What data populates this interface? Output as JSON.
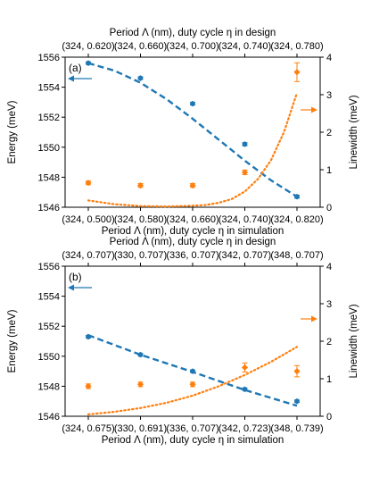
{
  "chart_data": [
    {
      "type": "scatter",
      "panel_label": "(a)",
      "xlabel_bottom": "Period Λ (nm), duty cycle η in simulation",
      "xlabel_top": "Period Λ (nm), duty cycle η in design",
      "ylabel_left": "Energy (meV)",
      "ylabel_right": "Linewidth (meV)",
      "categories_bottom": [
        "(324, 0.500)",
        "(324, 0.580)",
        "(324, 0.660)",
        "(324, 0.740)",
        "(324, 0.820)"
      ],
      "categories_top": [
        "(324, 0.620)",
        "(324, 0.660)",
        "(324, 0.700)",
        "(324, 0.740)",
        "(324, 0.780)"
      ],
      "y_left_lim": [
        1546,
        1556
      ],
      "y_left_ticks": [
        "1546",
        "1548",
        "1550",
        "1552",
        "1554",
        "1556"
      ],
      "y_right_lim": [
        0,
        4
      ],
      "y_right_ticks": [
        "0",
        "1",
        "2",
        "3",
        "4"
      ],
      "series": [
        {
          "axis": "left",
          "color": "#1f77b4",
          "marker": "hexagon",
          "values": [
            1555.6,
            1554.6,
            1552.9,
            1550.2,
            1546.7
          ],
          "errors": [
            0.08,
            0.08,
            0.08,
            0.1,
            0.1
          ]
        },
        {
          "axis": "right",
          "color": "#ff7f0e",
          "marker": "diamond",
          "values": [
            0.65,
            0.58,
            0.58,
            0.93,
            3.6
          ],
          "errors": [
            0.05,
            0.05,
            0.05,
            0.06,
            0.25
          ]
        }
      ],
      "fits": [
        {
          "axis": "left",
          "color": "#1f77b4",
          "style": "dashed",
          "x": [
            0,
            0.5,
            1,
            1.5,
            2,
            2.5,
            3,
            3.5,
            4
          ],
          "y": [
            1555.6,
            1555.1,
            1554.3,
            1553.2,
            1551.9,
            1550.5,
            1549.1,
            1547.8,
            1546.7
          ]
        },
        {
          "axis": "right",
          "color": "#ff7f0e",
          "style": "dotted",
          "x": [
            0,
            0.5,
            1,
            1.5,
            2,
            2.25,
            2.5,
            2.75,
            3,
            3.25,
            3.5,
            3.75,
            4
          ],
          "y": [
            0.18,
            0.08,
            0.03,
            0.02,
            0.04,
            0.06,
            0.12,
            0.22,
            0.42,
            0.75,
            1.25,
            2.0,
            3.05
          ]
        }
      ],
      "arrows": [
        {
          "direction": "left",
          "color": "#1f77b4"
        },
        {
          "direction": "right",
          "color": "#ff7f0e"
        }
      ]
    },
    {
      "type": "scatter",
      "panel_label": "(b)",
      "xlabel_bottom": "Period Λ (nm), duty cycle η in simulation",
      "xlabel_top": "Period Λ (nm), duty cycle η in design",
      "ylabel_left": "Energy (meV)",
      "ylabel_right": "Linewidth (meV)",
      "categories_bottom": [
        "(324, 0.675)",
        "(330, 0.691)",
        "(336, 0.707)",
        "(342, 0.723)",
        "(348, 0.739)"
      ],
      "categories_top": [
        "(324, 0.707)",
        "(330, 0.707)",
        "(336, 0.707)",
        "(342, 0.707)",
        "(348, 0.707)"
      ],
      "y_left_lim": [
        1546,
        1556
      ],
      "y_left_ticks": [
        "1546",
        "1548",
        "1550",
        "1552",
        "1554",
        "1556"
      ],
      "y_right_lim": [
        0,
        4
      ],
      "y_right_ticks": [
        "0",
        "1",
        "2",
        "3",
        "4"
      ],
      "series": [
        {
          "axis": "left",
          "color": "#1f77b4",
          "marker": "hexagon",
          "values": [
            1551.3,
            1550.1,
            1549.0,
            1547.8,
            1547.0
          ],
          "errors": [
            0.08,
            0.08,
            0.08,
            0.08,
            0.08
          ]
        },
        {
          "axis": "right",
          "color": "#ff7f0e",
          "marker": "diamond",
          "values": [
            0.8,
            0.85,
            0.85,
            1.3,
            1.2
          ],
          "errors": [
            0.06,
            0.06,
            0.06,
            0.12,
            0.15
          ]
        }
      ],
      "fits": [
        {
          "axis": "left",
          "color": "#1f77b4",
          "style": "dashed",
          "x": [
            0,
            1,
            2,
            3,
            4
          ],
          "y": [
            1551.4,
            1550.1,
            1548.95,
            1547.75,
            1546.7
          ]
        },
        {
          "axis": "right",
          "color": "#ff7f0e",
          "style": "dotted",
          "x": [
            0,
            0.5,
            1,
            1.5,
            2,
            2.5,
            3,
            3.5,
            4
          ],
          "y": [
            0.05,
            0.12,
            0.22,
            0.36,
            0.55,
            0.8,
            1.1,
            1.45,
            1.85
          ]
        }
      ],
      "arrows": [
        {
          "direction": "left",
          "color": "#1f77b4"
        },
        {
          "direction": "right",
          "color": "#ff7f0e"
        }
      ]
    }
  ]
}
